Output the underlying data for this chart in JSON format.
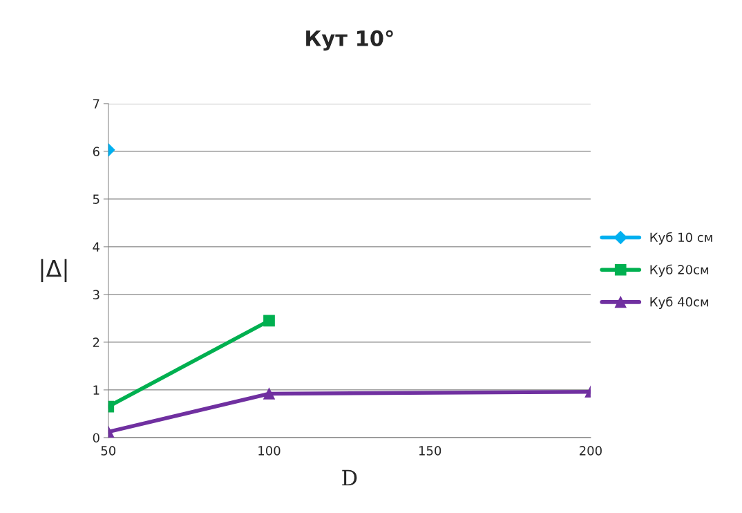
{
  "chart_data": {
    "type": "line",
    "title": "Кут 10°",
    "xlabel": "D",
    "ylabel": "|Δ|",
    "x": [
      50,
      100,
      200
    ],
    "series": [
      {
        "name": "Куб 10 см",
        "color": "#00b0f0",
        "marker": "diamond",
        "values": [
          6.03,
          null,
          null
        ]
      },
      {
        "name": "Куб 20см",
        "color": "#00b050",
        "marker": "square",
        "values": [
          0.65,
          2.45,
          null
        ]
      },
      {
        "name": "Куб 40см",
        "color": "#7030a0",
        "marker": "triangle",
        "values": [
          0.12,
          0.92,
          0.96
        ]
      }
    ],
    "xlim": [
      50,
      200
    ],
    "xticks": [
      50,
      100,
      150,
      200
    ],
    "ylim": [
      0,
      7
    ],
    "yticks": [
      0,
      1,
      2,
      3,
      4,
      5,
      6,
      7
    ],
    "grid": "y",
    "legend": "right"
  }
}
